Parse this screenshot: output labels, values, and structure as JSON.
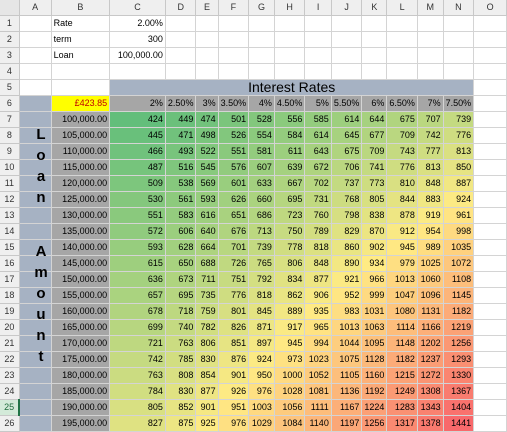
{
  "columns": [
    "A",
    "B",
    "C",
    "D",
    "E",
    "F",
    "G",
    "H",
    "I",
    "J",
    "K",
    "L",
    "M",
    "N",
    "O"
  ],
  "rows": [
    1,
    2,
    3,
    4,
    5,
    6,
    7,
    8,
    9,
    10,
    11,
    12,
    13,
    14,
    15,
    16,
    17,
    18,
    19,
    20,
    21,
    22,
    23,
    24,
    25,
    26
  ],
  "selected_row": 25,
  "inputs": [
    {
      "label": "Rate",
      "value": "2.00%"
    },
    {
      "label": "term",
      "value": "300"
    },
    {
      "label": "Loan",
      "value": "100,000.00"
    }
  ],
  "table_title": "Interest Rates",
  "payment_result": "£423.85",
  "side_label_word1": [
    "L",
    "o",
    "a",
    "n"
  ],
  "side_label_word2": [
    "A",
    "m",
    "o",
    "u",
    "n",
    "t"
  ],
  "rates": [
    "2%",
    "2.50%",
    "3%",
    "3.50%",
    "4%",
    "4.50%",
    "5%",
    "5.50%",
    "6%",
    "6.50%",
    "7%",
    "7.50%"
  ],
  "loans": [
    "100,000.00",
    "105,000.00",
    "110,000.00",
    "115,000.00",
    "120,000.00",
    "125,000.00",
    "130,000.00",
    "135,000.00",
    "140,000.00",
    "145,000.00",
    "150,000.00",
    "155,000.00",
    "160,000.00",
    "165,000.00",
    "170,000.00",
    "175,000.00",
    "180,000.00",
    "185,000.00",
    "190,000.00",
    "195,000.00"
  ],
  "payments": [
    [
      424,
      449,
      474,
      501,
      528,
      556,
      585,
      614,
      644,
      675,
      707,
      739
    ],
    [
      445,
      471,
      498,
      526,
      554,
      584,
      614,
      645,
      677,
      709,
      742,
      776
    ],
    [
      466,
      493,
      522,
      551,
      581,
      611,
      643,
      675,
      709,
      743,
      777,
      813
    ],
    [
      487,
      516,
      545,
      576,
      607,
      639,
      672,
      706,
      741,
      776,
      813,
      850
    ],
    [
      509,
      538,
      569,
      601,
      633,
      667,
      702,
      737,
      773,
      810,
      848,
      887
    ],
    [
      530,
      561,
      593,
      626,
      660,
      695,
      731,
      768,
      805,
      844,
      883,
      924
    ],
    [
      551,
      583,
      616,
      651,
      686,
      723,
      760,
      798,
      838,
      878,
      919,
      961
    ],
    [
      572,
      606,
      640,
      676,
      713,
      750,
      789,
      829,
      870,
      912,
      954,
      998
    ],
    [
      593,
      628,
      664,
      701,
      739,
      778,
      818,
      860,
      902,
      945,
      989,
      1035
    ],
    [
      615,
      650,
      688,
      726,
      765,
      806,
      848,
      890,
      934,
      979,
      1025,
      1072
    ],
    [
      636,
      673,
      711,
      751,
      792,
      834,
      877,
      921,
      966,
      1013,
      1060,
      1108
    ],
    [
      657,
      695,
      735,
      776,
      818,
      862,
      906,
      952,
      999,
      1047,
      1096,
      1145
    ],
    [
      678,
      718,
      759,
      801,
      845,
      889,
      935,
      983,
      1031,
      1080,
      1131,
      1182
    ],
    [
      699,
      740,
      782,
      826,
      871,
      917,
      965,
      1013,
      1063,
      1114,
      1166,
      1219
    ],
    [
      721,
      763,
      806,
      851,
      897,
      945,
      994,
      1044,
      1095,
      1148,
      1202,
      1256
    ],
    [
      742,
      785,
      830,
      876,
      924,
      973,
      1023,
      1075,
      1128,
      1182,
      1237,
      1293
    ],
    [
      763,
      808,
      854,
      901,
      950,
      1000,
      1052,
      1105,
      1160,
      1215,
      1272,
      1330
    ],
    [
      784,
      830,
      877,
      926,
      976,
      1028,
      1081,
      1136,
      1192,
      1249,
      1308,
      1367
    ],
    [
      805,
      852,
      901,
      951,
      1003,
      1056,
      1111,
      1167,
      1224,
      1283,
      1343,
      1404
    ],
    [
      827,
      875,
      925,
      976,
      1029,
      1084,
      1140,
      1197,
      1256,
      1317,
      1378,
      1441
    ]
  ]
}
